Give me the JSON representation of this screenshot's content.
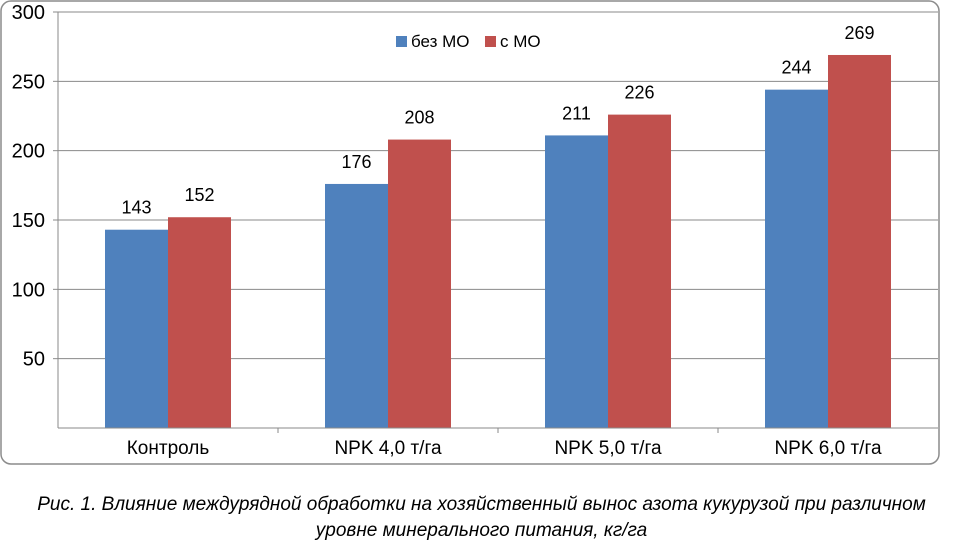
{
  "chart_data": {
    "type": "bar",
    "categories": [
      "Контроль",
      "NPK 4,0 т/га",
      "NPK 5,0 т/га",
      "NPK 6,0 т/га"
    ],
    "series": [
      {
        "name": "без МО",
        "values": [
          143,
          176,
          211,
          244
        ],
        "color": "#4f81bd"
      },
      {
        "name": "с МО",
        "values": [
          152,
          208,
          226,
          269
        ],
        "color": "#c0504d"
      }
    ],
    "ylim": [
      0,
      300
    ],
    "yticks": [
      50,
      100,
      150,
      200,
      250,
      300
    ],
    "grid": true,
    "legend": "top-center",
    "data_labels": true
  },
  "caption": {
    "line1": "Рис. 1. Влияние междурядной обработки на хозяйственный вынос азота кукурузой при различном",
    "line2": "уровне минерального питания, кг/га"
  }
}
